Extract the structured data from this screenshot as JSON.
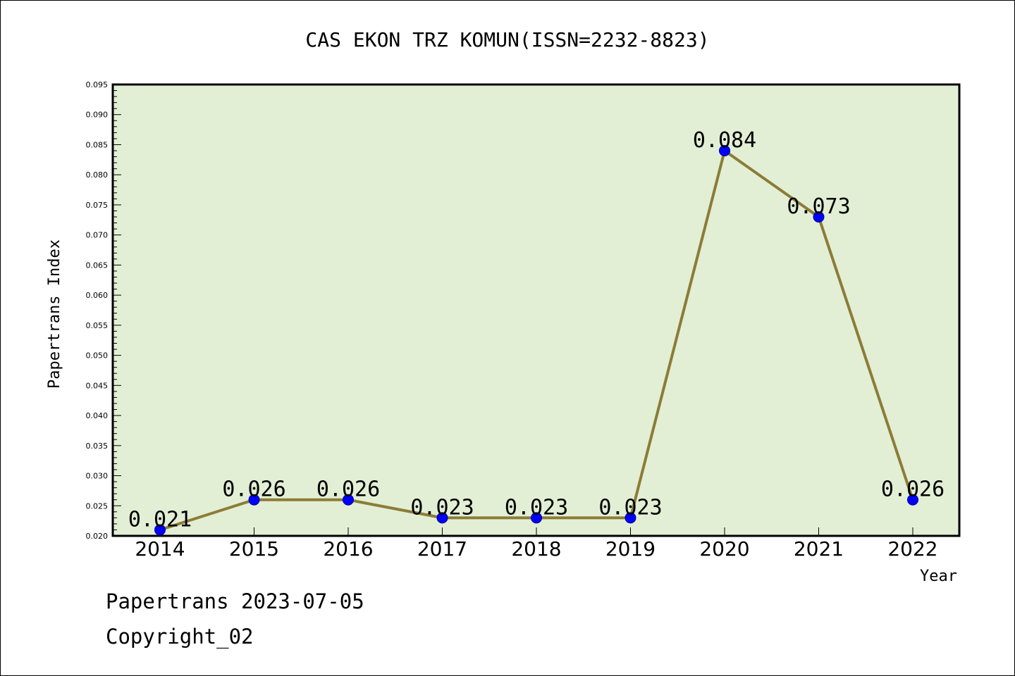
{
  "footer": {
    "line1": "Papertrans 2023-07-05",
    "line2": "Copyright_02"
  },
  "colors": {
    "plot_background": "#e2efd5",
    "line": "#8c7c36",
    "marker": "#0000ff"
  },
  "chart_data": {
    "type": "line",
    "title": "CAS EKON TRZ KOMUN(ISSN=2232-8823)",
    "xlabel": "Year",
    "ylabel": "Papertrans Index",
    "ylim": [
      0.02,
      0.095
    ],
    "categories": [
      "2014",
      "2015",
      "2016",
      "2017",
      "2018",
      "2019",
      "2020",
      "2021",
      "2022"
    ],
    "values": [
      0.021,
      0.026,
      0.026,
      0.023,
      0.023,
      0.023,
      0.084,
      0.073,
      0.026
    ],
    "data_labels": [
      "0.021",
      "0.026",
      "0.026",
      "0.023",
      "0.023",
      "0.023",
      "0.084",
      "0.073",
      "0.026"
    ],
    "yticks": [
      "0.020",
      "0.025",
      "0.030",
      "0.035",
      "0.040",
      "0.045",
      "0.050",
      "0.055",
      "0.060",
      "0.065",
      "0.070",
      "0.075",
      "0.080",
      "0.085",
      "0.090",
      "0.095"
    ],
    "grid": false,
    "legend": "none"
  }
}
